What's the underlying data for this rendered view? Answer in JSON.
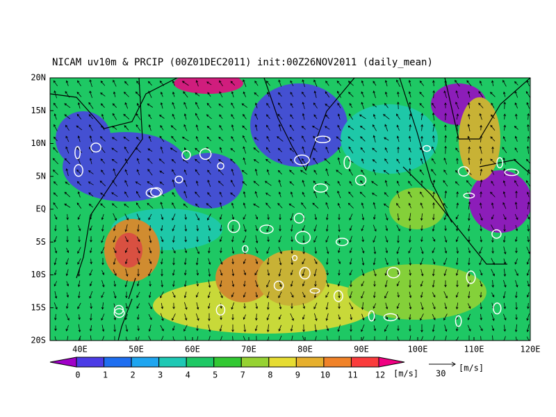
{
  "map": {
    "title": "NICAM uv10m & PRCIP (00Z01DEC2011) init:00Z26NOV2011 (daily_mean)",
    "lat_labels": [
      "20N",
      "15N",
      "10N",
      "5N",
      "EQ",
      "5S",
      "10S",
      "15S",
      "20S"
    ],
    "lon_labels": [
      "40E",
      "50E",
      "60E",
      "70E",
      "80E",
      "90E",
      "100E",
      "110E",
      "120E"
    ]
  },
  "colorbar": {
    "labels": [
      "0",
      "1",
      "2",
      "3",
      "4",
      "5",
      "7",
      "8",
      "9",
      "10",
      "11",
      "12"
    ],
    "unit": "[m/s]",
    "colors": [
      "#a000c8",
      "#4b3ce6",
      "#1e6ef0",
      "#1ea5f0",
      "#1ec8b4",
      "#1ec864",
      "#32c832",
      "#96d232",
      "#e6dc32",
      "#e6af2d",
      "#f08228",
      "#fa3c3c",
      "#f00082"
    ]
  },
  "reference_vector": {
    "label": "30",
    "unit": "[m/s]"
  }
}
